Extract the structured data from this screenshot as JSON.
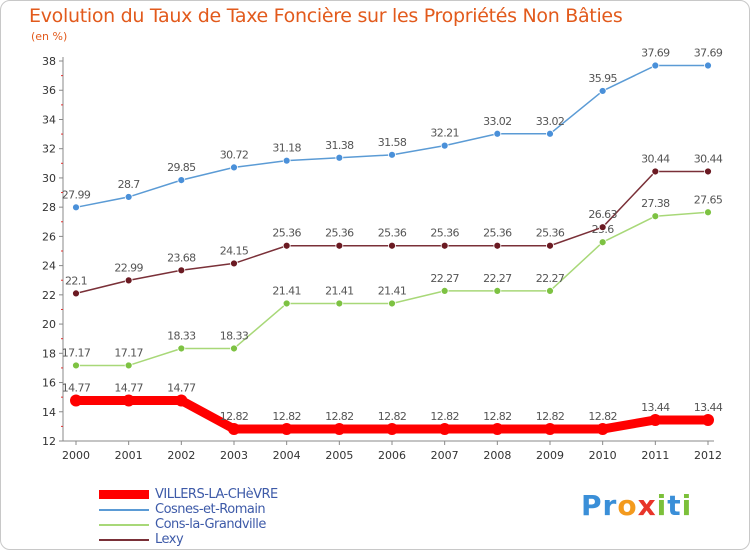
{
  "title": "Evolution du Taux de Taxe Foncière sur les Propriétés Non Bâties",
  "unit": "(en %)",
  "logo": {
    "letters": [
      "P",
      "r",
      "o",
      "x",
      "i",
      "t",
      "i"
    ],
    "colors": [
      "#3a8fd8",
      "#3a8fd8",
      "#f39a1e",
      "#e8352a",
      "#7cc03a",
      "#3a8fd8",
      "#7cc03a"
    ]
  },
  "chart_data": {
    "type": "line",
    "title": "Evolution du Taux de Taxe Foncière sur les Propriétés Non Bâties",
    "ylabel": "(en %)",
    "xlabel": "",
    "x": [
      "2000",
      "2001",
      "2002",
      "2003",
      "2004",
      "2005",
      "2006",
      "2007",
      "2008",
      "2009",
      "2010",
      "2011",
      "2012"
    ],
    "ylim": [
      12,
      38
    ],
    "yticks": [
      12,
      14,
      16,
      18,
      20,
      22,
      24,
      26,
      28,
      30,
      32,
      34,
      36,
      38
    ],
    "grid": false,
    "legend": "bottom-left",
    "series": [
      {
        "name": "VILLERS-LA-CHèVRE",
        "color": "#ff0000",
        "emphasis": true,
        "values": [
          14.77,
          14.77,
          14.77,
          12.82,
          12.82,
          12.82,
          12.82,
          12.82,
          12.82,
          12.82,
          12.82,
          13.44,
          13.44
        ],
        "labels": [
          "14.77",
          "14.77",
          "14.77",
          "12.82",
          "12.82",
          "12.82",
          "12.82",
          "12.82",
          "12.82",
          "12.82",
          "12.82",
          "13.44",
          "13.44"
        ]
      },
      {
        "name": "Cosnes-et-Romain",
        "color": "#5b9bd5",
        "point_color": "#4a90d9",
        "values": [
          27.99,
          28.7,
          29.85,
          30.72,
          31.18,
          31.38,
          31.58,
          32.21,
          33.02,
          33.02,
          35.95,
          37.69,
          37.69
        ],
        "labels": [
          "27.99",
          "28.7",
          "29.85",
          "30.72",
          "31.18",
          "31.38",
          "31.58",
          "32.21",
          "33.02",
          "33.02",
          "35.95",
          "37.69",
          "37.69"
        ]
      },
      {
        "name": "Cons-la-Grandville",
        "color": "#a8d878",
        "point_color": "#7dc242",
        "values": [
          17.17,
          17.17,
          18.33,
          18.33,
          21.41,
          21.41,
          21.41,
          22.27,
          22.27,
          22.27,
          25.6,
          27.38,
          27.65
        ],
        "labels": [
          "17.17",
          "17.17",
          "18.33",
          "18.33",
          "21.41",
          "21.41",
          "21.41",
          "22.27",
          "22.27",
          "22.27",
          "25.6",
          "27.38",
          "27.65"
        ]
      },
      {
        "name": "Lexy",
        "color": "#7a3038",
        "point_color": "#6b1a22",
        "values": [
          22.1,
          22.99,
          23.68,
          24.15,
          25.36,
          25.36,
          25.36,
          25.36,
          25.36,
          25.36,
          26.63,
          30.44,
          30.44
        ],
        "labels": [
          "22.1",
          "22.99",
          "23.68",
          "24.15",
          "25.36",
          "25.36",
          "25.36",
          "25.36",
          "25.36",
          "25.36",
          "26.63",
          "30.44",
          "30.44"
        ]
      }
    ]
  }
}
